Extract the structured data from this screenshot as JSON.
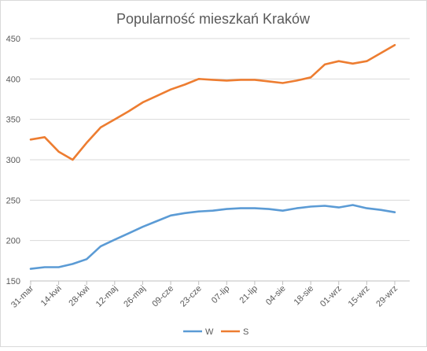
{
  "chart_data": {
    "type": "line",
    "title": "Popularność mieszkań Kraków",
    "xlabel": "",
    "ylabel": "",
    "ylim": [
      150,
      450
    ],
    "yticks": [
      150,
      200,
      250,
      300,
      350,
      400,
      450
    ],
    "grid": true,
    "legend_position": "bottom",
    "x_tick_labels": [
      "31-mar",
      "14-kwi",
      "28-kwi",
      "12-maj",
      "26-maj",
      "09-cze",
      "23-cze",
      "07-lip",
      "21-lip",
      "04-sie",
      "18-sie",
      "01-wrz",
      "15-wrz",
      "29-wrz"
    ],
    "x": [
      "31-mar",
      "07-kwi",
      "14-kwi",
      "21-kwi",
      "28-kwi",
      "05-maj",
      "12-maj",
      "19-maj",
      "26-maj",
      "02-cze",
      "09-cze",
      "16-cze",
      "23-cze",
      "30-cze",
      "07-lip",
      "14-lip",
      "21-lip",
      "28-lip",
      "04-sie",
      "11-sie",
      "18-sie",
      "25-sie",
      "01-wrz",
      "08-wrz",
      "15-wrz",
      "22-wrz",
      "29-wrz"
    ],
    "series": [
      {
        "name": "W",
        "color": "#5b9bd5",
        "values": [
          165,
          167,
          167,
          171,
          177,
          193,
          201,
          209,
          217,
          224,
          231,
          234,
          236,
          237,
          239,
          240,
          240,
          239,
          237,
          240,
          242,
          243,
          241,
          244,
          240,
          238,
          235
        ]
      },
      {
        "name": "S",
        "color": "#ed7d31",
        "values": [
          325,
          328,
          310,
          300,
          321,
          340,
          350,
          360,
          371,
          379,
          387,
          393,
          400,
          399,
          398,
          399,
          399,
          397,
          395,
          398,
          402,
          418,
          422,
          419,
          422,
          432,
          442
        ]
      }
    ]
  }
}
